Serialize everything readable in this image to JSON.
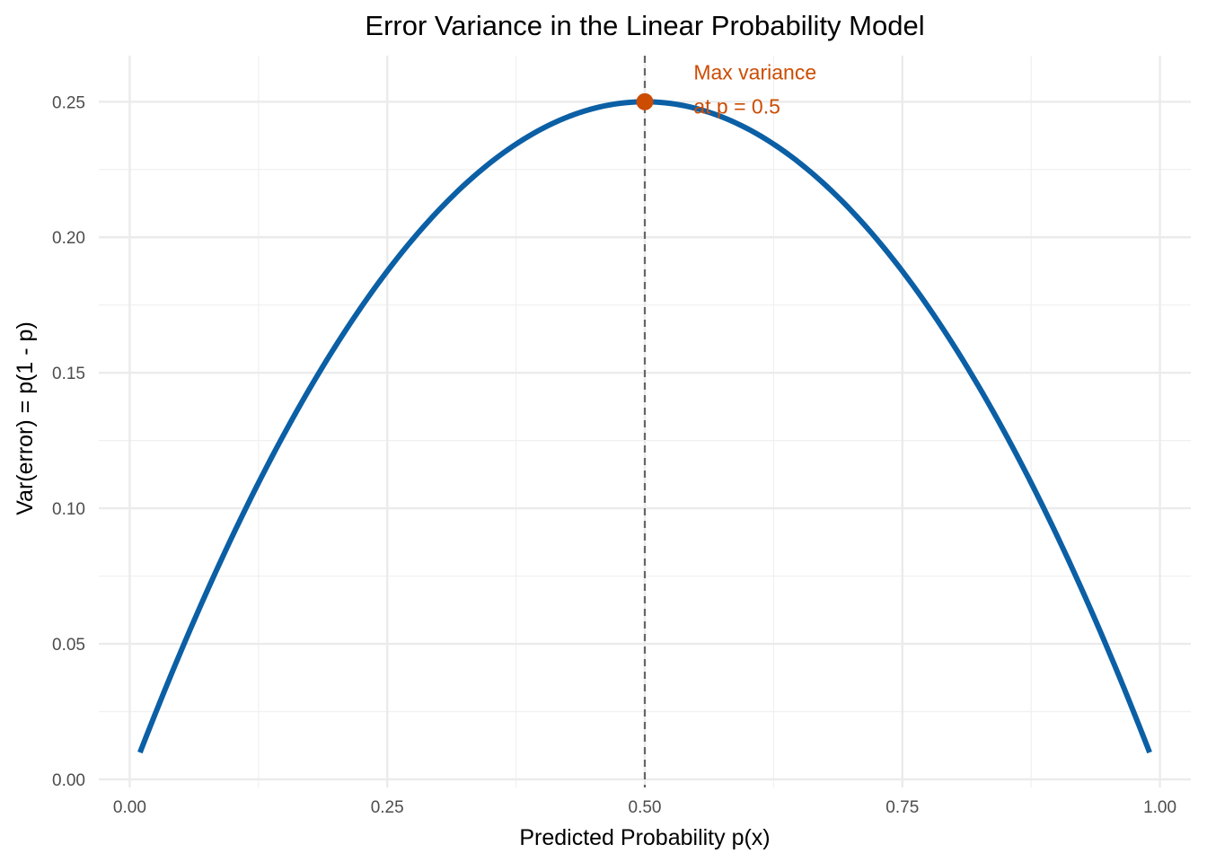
{
  "chart_data": {
    "type": "line",
    "title": "Error Variance in the Linear Probability Model",
    "xlabel": "Predicted Probability p(x)",
    "ylabel": "Var(error) = p(1 - p)",
    "xlim": [
      -0.03,
      1.03
    ],
    "ylim": [
      -0.003,
      0.267
    ],
    "x_ticks": [
      0.0,
      0.25,
      0.5,
      0.75,
      1.0
    ],
    "x_tick_labels": [
      "0.00",
      "0.25",
      "0.50",
      "0.75",
      "1.00"
    ],
    "y_ticks": [
      0.0,
      0.05,
      0.1,
      0.15,
      0.2,
      0.25
    ],
    "y_tick_labels": [
      "0.00",
      "0.05",
      "0.10",
      "0.15",
      "0.20",
      "0.25"
    ],
    "grid": true,
    "legend": "none",
    "series": [
      {
        "function": "p*(1-p)",
        "x_range": [
          0.01,
          0.99
        ],
        "color": "#0b5fa5",
        "x": [
          0.01,
          0.05,
          0.1,
          0.15,
          0.2,
          0.25,
          0.3,
          0.35,
          0.4,
          0.45,
          0.5,
          0.55,
          0.6,
          0.65,
          0.7,
          0.75,
          0.8,
          0.85,
          0.9,
          0.95,
          0.99
        ],
        "y": [
          0.0099,
          0.0475,
          0.09,
          0.1275,
          0.16,
          0.1875,
          0.21,
          0.2275,
          0.24,
          0.2475,
          0.25,
          0.2475,
          0.24,
          0.2275,
          0.21,
          0.1875,
          0.16,
          0.1275,
          0.09,
          0.0475,
          0.0099
        ]
      }
    ],
    "reference_line": {
      "orientation": "vertical",
      "x": 0.5,
      "style": "dashed",
      "color": "#666666"
    },
    "highlight_point": {
      "x": 0.5,
      "y": 0.25,
      "color": "#cc4c02"
    },
    "annotation": {
      "lines": [
        "Max variance",
        "at p = 0.5"
      ],
      "x": 0.55,
      "y": 0.25,
      "color": "#cc4c02"
    }
  }
}
